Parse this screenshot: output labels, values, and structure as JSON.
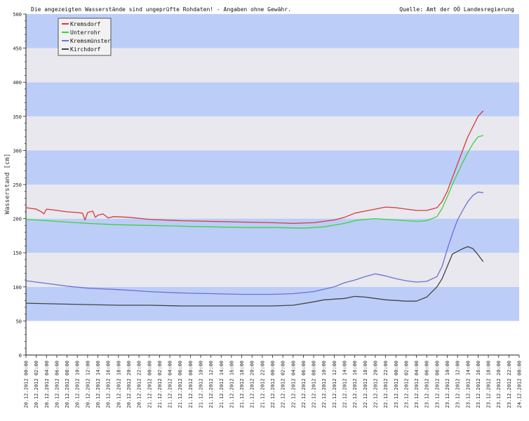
{
  "header": {
    "disclaimer": "Die angezeigten Wasserstände sind ungeprüfte Rohdaten! - Angaben ohne Gewähr.",
    "source": "Quelle: Amt der OÖ Landesregierung"
  },
  "chart_data": {
    "type": "line",
    "ylabel": "Wasserstand [cm]",
    "xlabel": "",
    "title": "",
    "ylim": [
      0,
      500
    ],
    "yticks": [
      0,
      50,
      100,
      150,
      200,
      250,
      300,
      350,
      400,
      450,
      500
    ],
    "grid": true,
    "band_colors": [
      "#ffffff",
      "#e8e8ee",
      "#bccdf8"
    ],
    "legend_position": "top-left",
    "x_ticks": [
      "20.12.2012 00:00",
      "20.12.2012 02:00",
      "20.12.2012 04:00",
      "20.12.2012 06:00",
      "20.12.2012 08:00",
      "20.12.2012 10:00",
      "20.12.2012 12:00",
      "20.12.2012 14:00",
      "20.12.2012 16:00",
      "20.12.2012 18:00",
      "20.12.2012 20:00",
      "20.12.2012 22:00",
      "21.12.2012 00:00",
      "21.12.2012 02:00",
      "21.12.2012 04:00",
      "21.12.2012 06:00",
      "21.12.2012 08:00",
      "21.12.2012 10:00",
      "21.12.2012 12:00",
      "21.12.2012 14:00",
      "21.12.2012 16:00",
      "21.12.2012 18:00",
      "21.12.2012 20:00",
      "21.12.2012 22:00",
      "22.12.2012 00:00",
      "22.12.2012 02:00",
      "22.12.2012 04:00",
      "22.12.2012 06:00",
      "22.12.2012 08:00",
      "22.12.2012 10:00",
      "22.12.2012 12:00",
      "22.12.2012 14:00",
      "22.12.2012 16:00",
      "22.12.2012 18:00",
      "22.12.2012 20:00",
      "22.12.2012 22:00",
      "23.12.2012 00:00",
      "23.12.2012 02:00",
      "23.12.2012 04:00",
      "23.12.2012 06:00",
      "23.12.2012 08:00",
      "23.12.2012 10:00",
      "23.12.2012 12:00",
      "23.12.2012 14:00",
      "23.12.2012 16:00",
      "23.12.2012 18:00",
      "23.12.2012 20:00",
      "23.12.2012 22:00",
      "24.12.2012 00:00"
    ],
    "series": [
      {
        "name": "Kremsdorf",
        "color": "#d23c3c",
        "points": [
          [
            "20.12.2012 00:00",
            216
          ],
          [
            "20.12.2012 02:00",
            214
          ],
          [
            "20.12.2012 03:00",
            210
          ],
          [
            "20.12.2012 03:30",
            207
          ],
          [
            "20.12.2012 04:00",
            214
          ],
          [
            "20.12.2012 06:00",
            212
          ],
          [
            "20.12.2012 08:00",
            210
          ],
          [
            "20.12.2012 10:00",
            209
          ],
          [
            "20.12.2012 11:00",
            208
          ],
          [
            "20.12.2012 11:30",
            198
          ],
          [
            "20.12.2012 12:00",
            209
          ],
          [
            "20.12.2012 13:00",
            211
          ],
          [
            "20.12.2012 13:30",
            202
          ],
          [
            "20.12.2012 14:00",
            205
          ],
          [
            "20.12.2012 15:00",
            207
          ],
          [
            "20.12.2012 16:00",
            201
          ],
          [
            "20.12.2012 17:00",
            203
          ],
          [
            "20.12.2012 20:00",
            202
          ],
          [
            "21.12.2012 00:00",
            199
          ],
          [
            "21.12.2012 06:00",
            197
          ],
          [
            "21.12.2012 12:00",
            196
          ],
          [
            "21.12.2012 18:00",
            195
          ],
          [
            "22.12.2012 00:00",
            194
          ],
          [
            "22.12.2012 04:00",
            193
          ],
          [
            "22.12.2012 08:00",
            194
          ],
          [
            "22.12.2012 12:00",
            198
          ],
          [
            "22.12.2012 14:00",
            202
          ],
          [
            "22.12.2012 16:00",
            208
          ],
          [
            "22.12.2012 18:00",
            211
          ],
          [
            "22.12.2012 20:00",
            214
          ],
          [
            "22.12.2012 22:00",
            217
          ],
          [
            "23.12.2012 00:00",
            216
          ],
          [
            "23.12.2012 02:00",
            214
          ],
          [
            "23.12.2012 04:00",
            212
          ],
          [
            "23.12.2012 06:00",
            212
          ],
          [
            "23.12.2012 08:00",
            216
          ],
          [
            "23.12.2012 09:00",
            225
          ],
          [
            "23.12.2012 10:00",
            240
          ],
          [
            "23.12.2012 11:00",
            260
          ],
          [
            "23.12.2012 12:00",
            280
          ],
          [
            "23.12.2012 13:00",
            300
          ],
          [
            "23.12.2012 14:00",
            320
          ],
          [
            "23.12.2012 15:00",
            335
          ],
          [
            "23.12.2012 16:00",
            350
          ],
          [
            "23.12.2012 17:00",
            358
          ]
        ]
      },
      {
        "name": "Unterrohr",
        "color": "#3cd23c",
        "points": [
          [
            "20.12.2012 00:00",
            199
          ],
          [
            "20.12.2012 04:00",
            197
          ],
          [
            "20.12.2012 08:00",
            195
          ],
          [
            "20.12.2012 12:00",
            193
          ],
          [
            "20.12.2012 18:00",
            191
          ],
          [
            "21.12.2012 00:00",
            190
          ],
          [
            "21.12.2012 06:00",
            189
          ],
          [
            "21.12.2012 12:00",
            188
          ],
          [
            "21.12.2012 18:00",
            187
          ],
          [
            "22.12.2012 00:00",
            187
          ],
          [
            "22.12.2012 06:00",
            186
          ],
          [
            "22.12.2012 10:00",
            188
          ],
          [
            "22.12.2012 14:00",
            193
          ],
          [
            "22.12.2012 16:00",
            197
          ],
          [
            "22.12.2012 18:00",
            199
          ],
          [
            "22.12.2012 20:00",
            200
          ],
          [
            "22.12.2012 22:00",
            199
          ],
          [
            "23.12.2012 00:00",
            198
          ],
          [
            "23.12.2012 02:00",
            197
          ],
          [
            "23.12.2012 04:00",
            196
          ],
          [
            "23.12.2012 06:00",
            197
          ],
          [
            "23.12.2012 08:00",
            203
          ],
          [
            "23.12.2012 09:00",
            215
          ],
          [
            "23.12.2012 10:00",
            232
          ],
          [
            "23.12.2012 11:00",
            250
          ],
          [
            "23.12.2012 12:00",
            266
          ],
          [
            "23.12.2012 13:00",
            282
          ],
          [
            "23.12.2012 14:00",
            297
          ],
          [
            "23.12.2012 15:00",
            310
          ],
          [
            "23.12.2012 16:00",
            320
          ],
          [
            "23.12.2012 17:00",
            322
          ]
        ]
      },
      {
        "name": "Kremsmünster",
        "color": "#6f6fd8",
        "points": [
          [
            "20.12.2012 00:00",
            109
          ],
          [
            "20.12.2012 04:00",
            105
          ],
          [
            "20.12.2012 08:00",
            101
          ],
          [
            "20.12.2012 12:00",
            98
          ],
          [
            "20.12.2012 18:00",
            96
          ],
          [
            "21.12.2012 00:00",
            93
          ],
          [
            "21.12.2012 06:00",
            91
          ],
          [
            "21.12.2012 12:00",
            90
          ],
          [
            "21.12.2012 18:00",
            89
          ],
          [
            "22.12.2012 00:00",
            89
          ],
          [
            "22.12.2012 04:00",
            90
          ],
          [
            "22.12.2012 08:00",
            93
          ],
          [
            "22.12.2012 12:00",
            100
          ],
          [
            "22.12.2012 14:00",
            106
          ],
          [
            "22.12.2012 16:00",
            110
          ],
          [
            "22.12.2012 18:00",
            115
          ],
          [
            "22.12.2012 20:00",
            119
          ],
          [
            "22.12.2012 22:00",
            116
          ],
          [
            "23.12.2012 00:00",
            112
          ],
          [
            "23.12.2012 02:00",
            109
          ],
          [
            "23.12.2012 04:00",
            107
          ],
          [
            "23.12.2012 06:00",
            108
          ],
          [
            "23.12.2012 08:00",
            115
          ],
          [
            "23.12.2012 09:00",
            130
          ],
          [
            "23.12.2012 10:00",
            155
          ],
          [
            "23.12.2012 11:00",
            178
          ],
          [
            "23.12.2012 12:00",
            198
          ],
          [
            "23.12.2012 13:00",
            212
          ],
          [
            "23.12.2012 14:00",
            225
          ],
          [
            "23.12.2012 15:00",
            234
          ],
          [
            "23.12.2012 16:00",
            239
          ],
          [
            "23.12.2012 17:00",
            238
          ]
        ]
      },
      {
        "name": "Kirchdorf",
        "color": "#444444",
        "points": [
          [
            "20.12.2012 00:00",
            76
          ],
          [
            "20.12.2012 06:00",
            75
          ],
          [
            "20.12.2012 12:00",
            74
          ],
          [
            "20.12.2012 18:00",
            73
          ],
          [
            "21.12.2012 00:00",
            73
          ],
          [
            "21.12.2012 06:00",
            72
          ],
          [
            "21.12.2012 12:00",
            72
          ],
          [
            "21.12.2012 18:00",
            72
          ],
          [
            "22.12.2012 00:00",
            72
          ],
          [
            "22.12.2012 04:00",
            73
          ],
          [
            "22.12.2012 08:00",
            78
          ],
          [
            "22.12.2012 10:00",
            81
          ],
          [
            "22.12.2012 12:00",
            82
          ],
          [
            "22.12.2012 14:00",
            83
          ],
          [
            "22.12.2012 16:00",
            86
          ],
          [
            "22.12.2012 18:00",
            85
          ],
          [
            "22.12.2012 20:00",
            83
          ],
          [
            "22.12.2012 22:00",
            81
          ],
          [
            "23.12.2012 00:00",
            80
          ],
          [
            "23.12.2012 02:00",
            79
          ],
          [
            "23.12.2012 04:00",
            79
          ],
          [
            "23.12.2012 06:00",
            85
          ],
          [
            "23.12.2012 08:00",
            100
          ],
          [
            "23.12.2012 09:00",
            112
          ],
          [
            "23.12.2012 10:00",
            130
          ],
          [
            "23.12.2012 11:00",
            148
          ],
          [
            "23.12.2012 12:00",
            152
          ],
          [
            "23.12.2012 13:00",
            156
          ],
          [
            "23.12.2012 14:00",
            159
          ],
          [
            "23.12.2012 15:00",
            156
          ],
          [
            "23.12.2012 16:00",
            147
          ],
          [
            "23.12.2012 17:00",
            137
          ]
        ]
      }
    ]
  }
}
